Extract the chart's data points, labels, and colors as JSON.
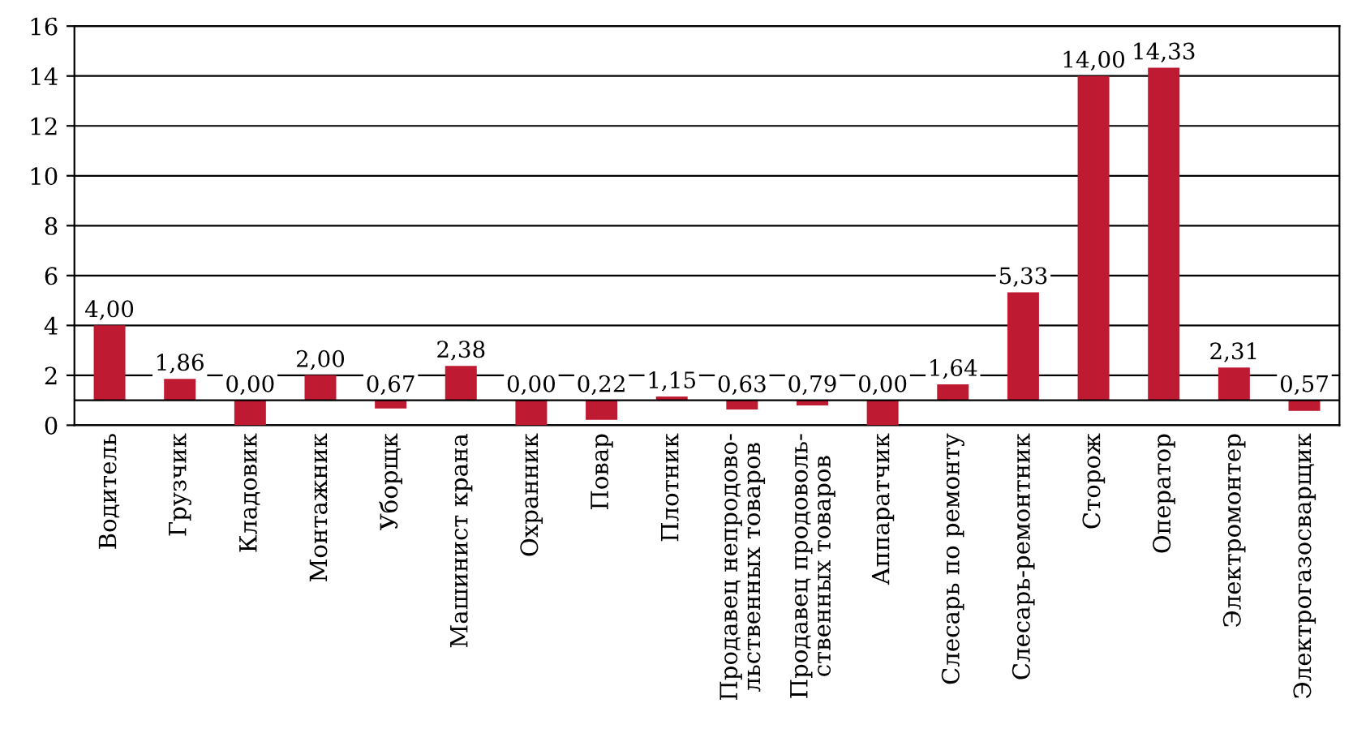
{
  "chart_data": {
    "type": "bar",
    "categories": [
      "Водитель",
      "Грузчик",
      "Кладовик",
      "Монтажник",
      "Уборщк",
      "Машинист крана",
      "Охранник",
      "Повар",
      "Плотник",
      "Продавец непродово-\nльственных товаров",
      "Продавец продоволь-\nственных товаров",
      "Аппаратчик",
      "Слесарь по ремонту",
      "Слесарь-ремонтник",
      "Сторож",
      "Оператор",
      "Электромонтер",
      "Электрогазосварщик"
    ],
    "base": [
      1,
      1,
      1,
      1,
      1,
      1,
      1,
      1,
      1,
      1,
      1,
      1,
      1,
      1,
      1,
      1,
      1,
      1
    ],
    "values": [
      3.0,
      0.86,
      -1.0,
      1.0,
      -0.33,
      1.38,
      -1.0,
      -0.78,
      0.15,
      -0.37,
      -0.21,
      -1.0,
      0.64,
      4.33,
      13.0,
      13.33,
      1.31,
      -0.43
    ],
    "value_labels": [
      "4,00",
      "1,86",
      "0,00",
      "2,00",
      "0,67",
      "2,38",
      "0,00",
      "0,22",
      "1,15",
      "0,63",
      "0,79",
      "0,00",
      "1,64",
      "5,33",
      "14,00",
      "14,33",
      "2,31",
      "0,57"
    ],
    "color": "#be1a32",
    "ylim": [
      0,
      16
    ],
    "yticks": [
      0,
      2,
      4,
      6,
      8,
      10,
      12,
      14,
      16
    ],
    "grid": "y",
    "ref_lines": [
      {
        "axis": "y",
        "value": 1,
        "label": null,
        "color": "#000000"
      }
    ]
  }
}
